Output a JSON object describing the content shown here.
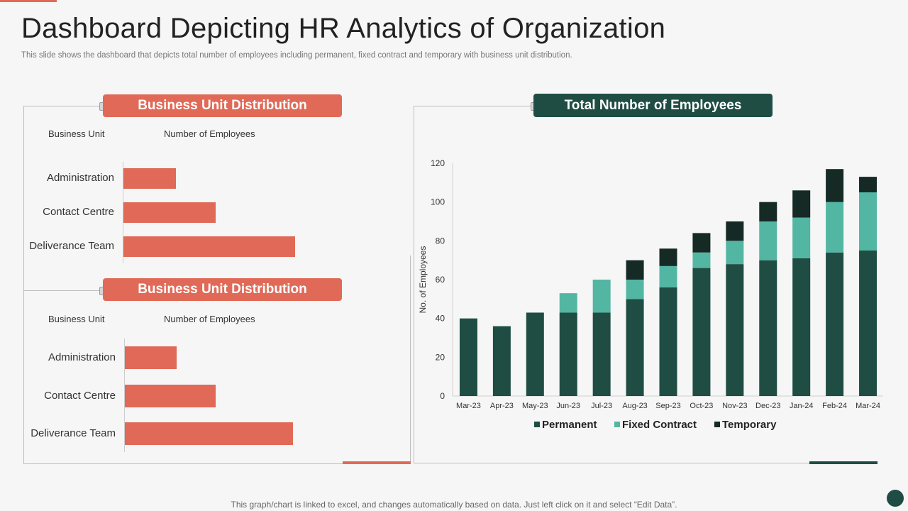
{
  "title": "Dashboard Depicting HR Analytics of Organization",
  "subtitle": "This slide shows the dashboard that depicts total number of employees including permanent, fixed contract and temporary with business unit distribution.",
  "footer": "This graph/chart is linked to excel,  and changes automatically based on data. Just left click on it and select “Edit Data”.",
  "colors": {
    "accent_red": "#e06a57",
    "dark_green": "#1f4d43",
    "permanent": "#1f4d43",
    "fixed_contract": "#53b6a3",
    "temporary": "#152925"
  },
  "panel1": {
    "header": "Business Unit Distribution",
    "col_unit": "Business Unit",
    "col_count": "Number  of Employees",
    "items": [
      {
        "label": "Administration",
        "value": 20
      },
      {
        "label": "Contact Centre",
        "value": 35
      },
      {
        "label": "Deliverance Team",
        "value": 65
      }
    ]
  },
  "panel2": {
    "header": "Business Unit Distribution",
    "col_unit": "Business Unit",
    "col_count": "Number  of Employees",
    "items": [
      {
        "label": "Administration",
        "value": 20
      },
      {
        "label": "Contact Centre",
        "value": 35
      },
      {
        "label": "Deliverance Team",
        "value": 65
      }
    ]
  },
  "employees_panel": {
    "header": "Total Number of Employees"
  },
  "chart_data": {
    "type": "bar",
    "stacked": true,
    "title": "Total Number of Employees",
    "xlabel": "",
    "ylabel": "No. of Employees",
    "ylim": [
      0,
      120
    ],
    "yticks": [
      0,
      20,
      40,
      60,
      80,
      100,
      120
    ],
    "categories": [
      "Mar-23",
      "Apr-23",
      "May-23",
      "Jun-23",
      "Jul-23",
      "Aug-23",
      "Sep-23",
      "Oct-23",
      "Nov-23",
      "Dec-23",
      "Jan-24",
      "Feb-24",
      "Mar-24"
    ],
    "series": [
      {
        "name": "Permanent",
        "values": [
          40,
          36,
          43,
          43,
          43,
          50,
          56,
          66,
          68,
          70,
          71,
          74,
          75
        ]
      },
      {
        "name": "Fixed Contract",
        "values": [
          0,
          0,
          0,
          10,
          17,
          10,
          11,
          8,
          12,
          20,
          21,
          26,
          30
        ]
      },
      {
        "name": "Temporary",
        "values": [
          0,
          0,
          0,
          0,
          0,
          10,
          9,
          10,
          10,
          10,
          14,
          17,
          8
        ]
      }
    ],
    "legend": "bottom"
  }
}
